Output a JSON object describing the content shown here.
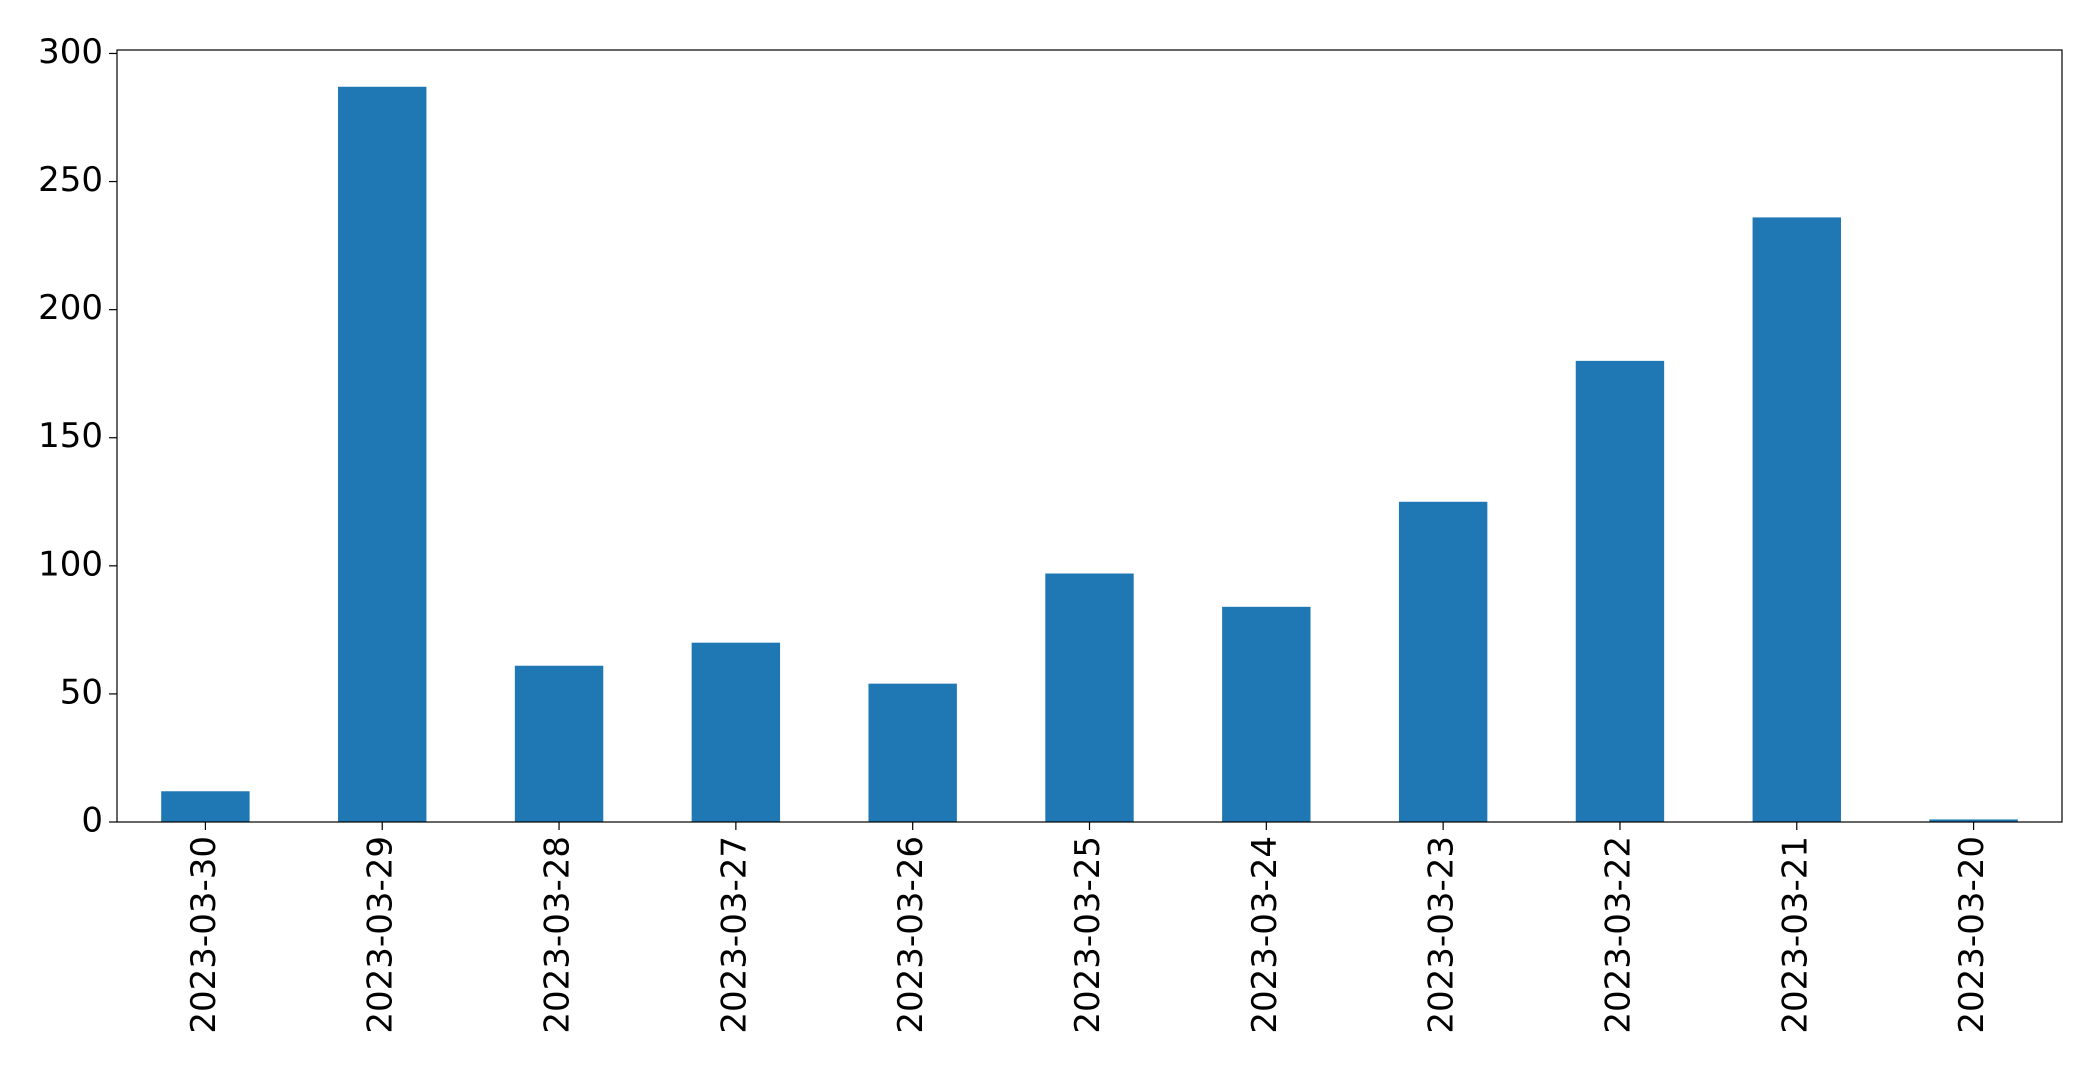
{
  "chart_data": {
    "type": "bar",
    "categories": [
      "2023-03-30",
      "2023-03-29",
      "2023-03-28",
      "2023-03-27",
      "2023-03-26",
      "2023-03-25",
      "2023-03-24",
      "2023-03-23",
      "2023-03-22",
      "2023-03-21",
      "2023-03-20"
    ],
    "values": [
      12,
      287,
      61,
      70,
      54,
      97,
      84,
      125,
      180,
      236,
      1
    ],
    "color": "#1f77b4",
    "ylim": [
      0,
      301.35
    ],
    "yticks": [
      0,
      50,
      100,
      150,
      200,
      250,
      300
    ],
    "grid": false
  }
}
